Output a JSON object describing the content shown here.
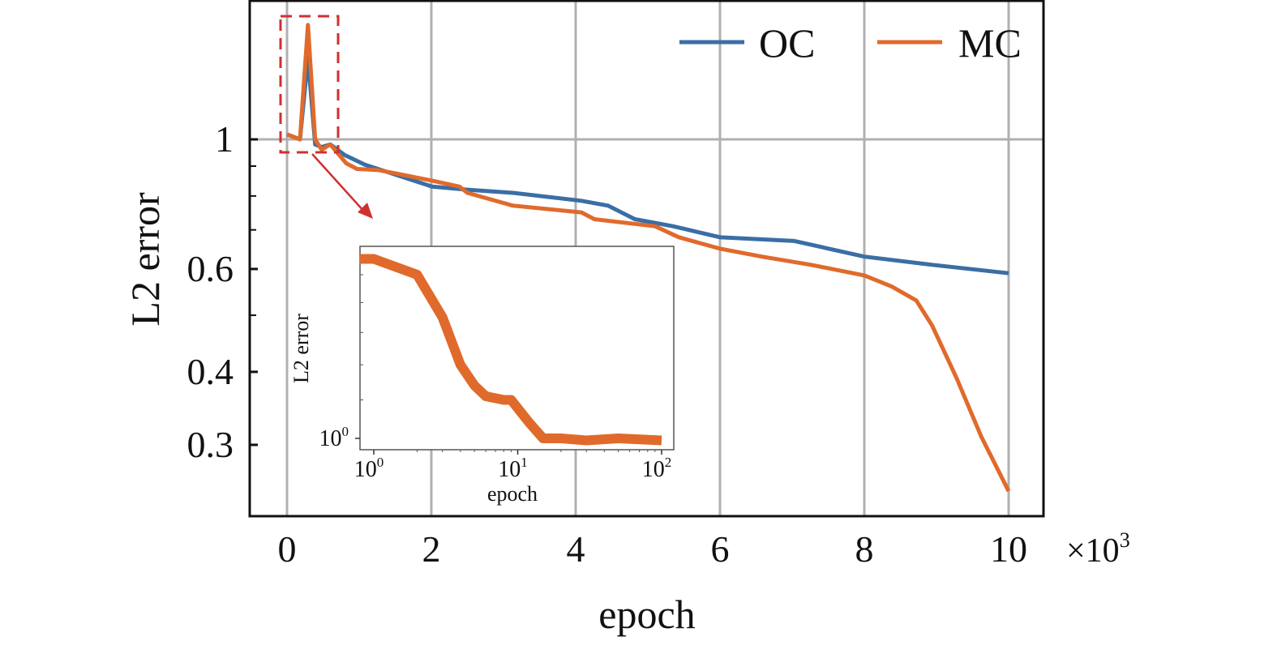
{
  "chart_data": [
    {
      "type": "line",
      "xlabel": "epoch",
      "ylabel": "L2 error",
      "x_multiplier_label": "×10",
      "x_multiplier_exponent": "3",
      "xlim": [
        -500,
        10500
      ],
      "ylim": [
        0.226,
        1.73
      ],
      "y_scale": "log",
      "x_ticks": [
        0,
        2000,
        4000,
        6000,
        8000,
        10000
      ],
      "x_tick_labels": [
        "0",
        "2",
        "4",
        "6",
        "8",
        "10"
      ],
      "y_ticks": [
        1,
        0.6,
        0.4,
        0.3
      ],
      "y_tick_labels": [
        "1",
        "0.6",
        "0.4",
        "0.3"
      ],
      "y_minor_ticks": [
        0.9,
        0.8,
        0.7,
        0.5
      ],
      "grid": "vertical at x ticks, horizontal at y = 1",
      "legend_position": "top-right",
      "series": [
        {
          "name": "OC",
          "color": "#3a6ea5",
          "x": [
            0,
            180,
            290,
            390,
            480,
            600,
            800,
            1080,
            1420,
            2010,
            2500,
            3130,
            4080,
            4450,
            4820,
            5350,
            6000,
            7030,
            8000,
            8940,
            10000
          ],
          "y": [
            1.02,
            1.0,
            1.38,
            0.98,
            0.97,
            0.98,
            0.94,
            0.905,
            0.877,
            0.83,
            0.82,
            0.81,
            0.785,
            0.77,
            0.73,
            0.71,
            0.68,
            0.67,
            0.63,
            0.61,
            0.59
          ]
        },
        {
          "name": "MC",
          "color": "#e06a2c",
          "x": [
            0,
            180,
            290,
            390,
            480,
            600,
            820,
            970,
            1270,
            2010,
            2390,
            2500,
            3130,
            4080,
            4260,
            5100,
            5430,
            6000,
            6580,
            7260,
            8000,
            8380,
            8720,
            8940,
            9280,
            9620,
            10000
          ],
          "y": [
            1.02,
            1.0,
            1.57,
            1.0,
            0.96,
            0.98,
            0.91,
            0.89,
            0.886,
            0.85,
            0.83,
            0.81,
            0.77,
            0.75,
            0.73,
            0.71,
            0.68,
            0.65,
            0.63,
            0.61,
            0.585,
            0.56,
            0.53,
            0.48,
            0.39,
            0.31,
            0.25
          ]
        }
      ],
      "annotation": {
        "type": "dashed zoom box with arrow",
        "x_range": [
          -100,
          700
        ],
        "color": "#d03030"
      }
    },
    {
      "type": "line",
      "inset": true,
      "xlabel": "epoch",
      "ylabel": "L2 error",
      "x_scale": "log",
      "y_scale": "log",
      "xlim": [
        0.8,
        120
      ],
      "ylim": [
        0.97,
        1.62
      ],
      "x_tick_labels": [
        {
          "base": "10",
          "exp": "0",
          "value": 1
        },
        {
          "base": "10",
          "exp": "1",
          "value": 10
        },
        {
          "base": "10",
          "exp": "2",
          "value": 100
        }
      ],
      "y_tick_labels": [
        {
          "base": "10",
          "exp": "0",
          "value": 1
        }
      ],
      "series": [
        {
          "color": "#e06a2c",
          "x": [
            0.8,
            1,
            2,
            3,
            4,
            5,
            6,
            8,
            9,
            12,
            15,
            20,
            30,
            50,
            100
          ],
          "y": [
            1.56,
            1.56,
            1.5,
            1.35,
            1.2,
            1.14,
            1.11,
            1.1,
            1.1,
            1.04,
            1.0,
            1.0,
            0.995,
            1.0,
            0.995
          ]
        }
      ]
    }
  ]
}
